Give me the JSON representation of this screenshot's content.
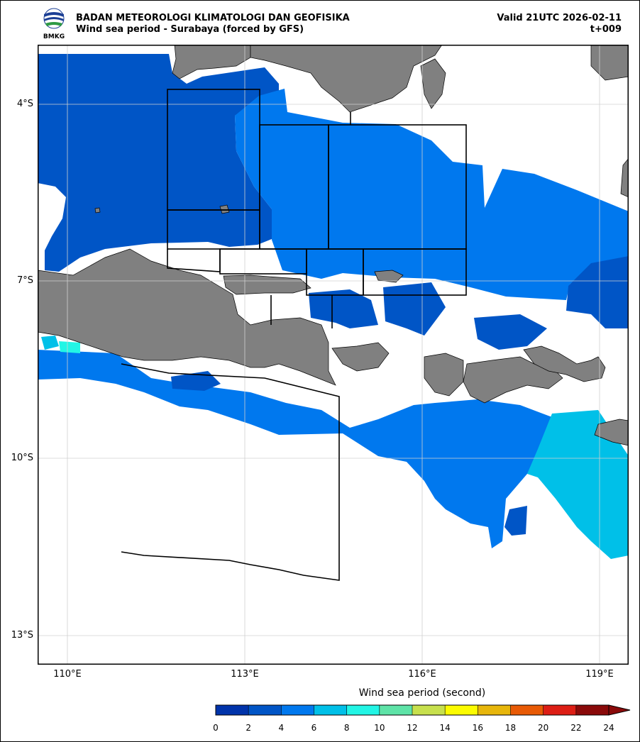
{
  "header": {
    "logo_text": "BMKG",
    "title": "BADAN METEOROLOGI KLIMATOLOGI DAN GEOFISIKA",
    "subtitle": "Wind sea period - Surabaya (forced by GFS)",
    "valid": "Valid 21UTC 2026-02-11",
    "step": "t+009"
  },
  "axes": {
    "lat_labels": [
      "4°S",
      "7°S",
      "10°S",
      "13°S"
    ],
    "lon_labels": [
      "110°E",
      "113°E",
      "116°E",
      "119°E"
    ]
  },
  "colorbar": {
    "title": "Wind sea period (second)",
    "ticks": [
      "0",
      "2",
      "4",
      "6",
      "8",
      "10",
      "12",
      "14",
      "16",
      "18",
      "20",
      "22",
      "24"
    ],
    "colors": [
      "#0033aa",
      "#0055c6",
      "#0078ee",
      "#00c0e8",
      "#22f5e5",
      "#5ee3a7",
      "#c7e04d",
      "#fcfc00",
      "#e7b60b",
      "#e85a05",
      "#dd1e15",
      "#8a0a0a"
    ]
  },
  "palette": {
    "land": "#808080",
    "c0_2": "#0033aa",
    "c2_4": "#0055c6",
    "c4_6": "#0078ee",
    "c6_8": "#00c0e8",
    "c8_10": "#22f5e5"
  }
}
